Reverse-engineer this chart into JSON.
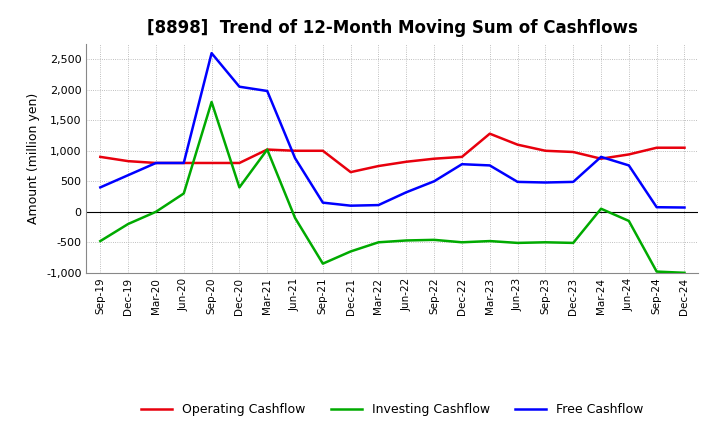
{
  "title": "[8898]  Trend of 12-Month Moving Sum of Cashflows",
  "ylabel": "Amount (million yen)",
  "xlabels": [
    "Sep-19",
    "Dec-19",
    "Mar-20",
    "Jun-20",
    "Sep-20",
    "Dec-20",
    "Mar-21",
    "Jun-21",
    "Sep-21",
    "Dec-21",
    "Mar-22",
    "Jun-22",
    "Sep-22",
    "Dec-22",
    "Mar-23",
    "Jun-23",
    "Sep-23",
    "Dec-23",
    "Mar-24",
    "Jun-24",
    "Sep-24",
    "Dec-24"
  ],
  "operating": [
    900,
    830,
    800,
    800,
    800,
    800,
    1020,
    1000,
    1000,
    650,
    750,
    820,
    870,
    900,
    1280,
    1100,
    1000,
    980,
    870,
    940,
    1050,
    1050
  ],
  "investing": [
    -480,
    -200,
    0,
    300,
    1800,
    400,
    1020,
    -100,
    -850,
    -650,
    -500,
    -470,
    -460,
    -500,
    -480,
    -510,
    -500,
    -510,
    50,
    -150,
    -980,
    -1000
  ],
  "free": [
    400,
    600,
    800,
    800,
    2600,
    2050,
    1980,
    880,
    150,
    100,
    110,
    320,
    500,
    780,
    760,
    490,
    480,
    490,
    900,
    760,
    75,
    70
  ],
  "operating_color": "#e8000d",
  "investing_color": "#00aa00",
  "free_color": "#0000ff",
  "ylim": [
    -1000,
    2750
  ],
  "yticks": [
    -1000,
    -500,
    0,
    500,
    1000,
    1500,
    2000,
    2500
  ],
  "bg_color": "#ffffff",
  "plot_bg_color": "#ffffff",
  "grid_color": "#aaaaaa",
  "linewidth": 1.8,
  "title_fontsize": 12,
  "ylabel_fontsize": 9,
  "tick_fontsize": 8,
  "xtick_fontsize": 7.5
}
